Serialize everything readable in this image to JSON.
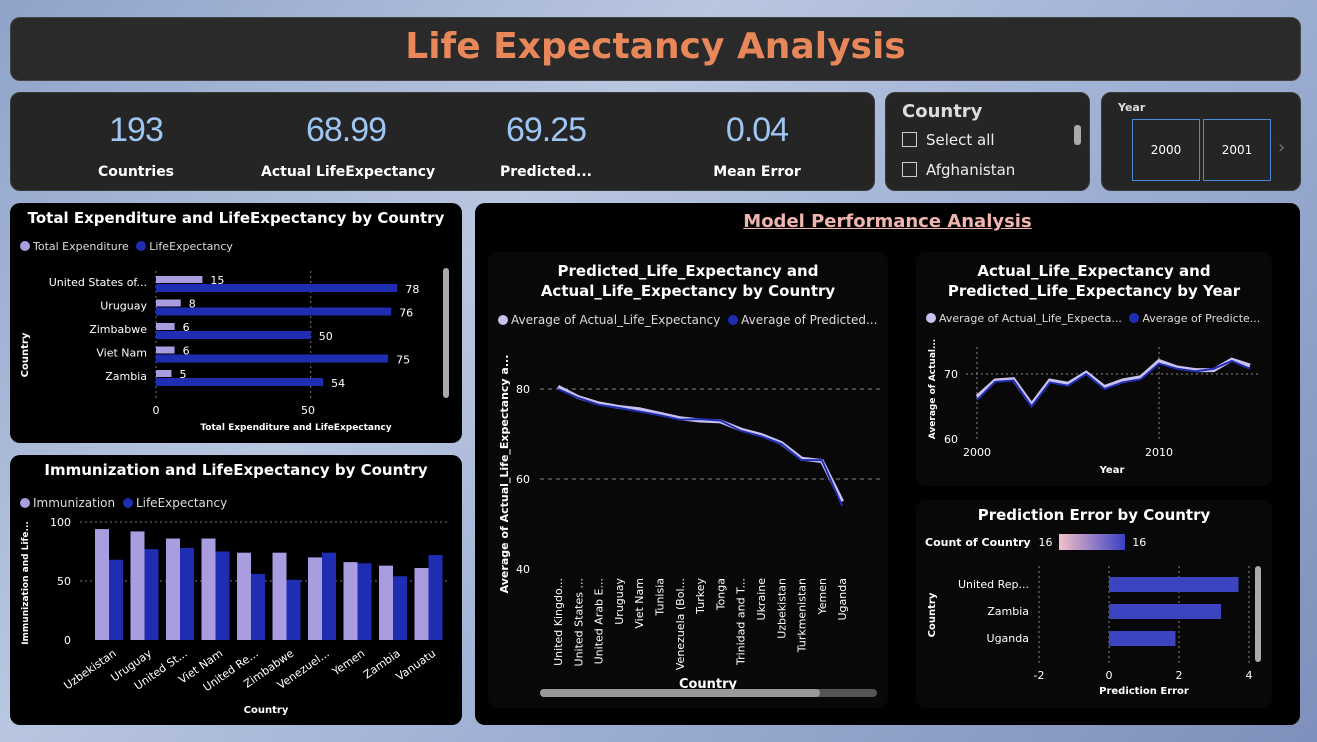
{
  "title": "Life Expectancy Analysis",
  "kpis": [
    {
      "value": "193",
      "label": "Countries"
    },
    {
      "value": "68.99",
      "label": "Actual LifeExpectancy"
    },
    {
      "value": "69.25",
      "label": "Predicted..."
    },
    {
      "value": "0.04",
      "label": "Mean Error"
    }
  ],
  "country_slicer": {
    "title": "Country",
    "items": [
      "Select all",
      "Afghanistan"
    ]
  },
  "year_slicer": {
    "title": "Year",
    "tiles": [
      "2000",
      "2001"
    ]
  },
  "colors": {
    "light": "#a99de0",
    "dark": "#1f2db3",
    "accent": "#e8875a",
    "kpi": "#9ec6f2"
  },
  "expenditure_chart": {
    "title": "Total Expenditure and LifeExpectancy by Country",
    "legend": [
      "Total Expenditure",
      "LifeExpectancy"
    ],
    "ylabel": "Country",
    "xlabel": "Total Expenditure and LifeExpectancy",
    "xticks": [
      "0",
      "50"
    ]
  },
  "immunization_chart": {
    "title": "Immunization and LifeExpectancy by Country",
    "legend": [
      "Immunization",
      "LifeExpectancy"
    ],
    "ylabel": "Immunization and Life...",
    "xlabel": "Country",
    "yticks": [
      "100",
      "50",
      "0"
    ]
  },
  "model_section": {
    "title": "Model Performance Analysis"
  },
  "pred_country_chart": {
    "title_line1": "Predicted_Life_Expectancy and",
    "title_line2": "Actual_Life_Expectancy by Country",
    "legend": [
      "Average of Actual_Life_Expectancy",
      "Average of Predicted..."
    ],
    "ylabel": "Average of Actual_Life_Expectancy a...",
    "xlabel": "Country",
    "yticks": [
      "80",
      "60",
      "40"
    ]
  },
  "year_chart": {
    "title_line1": "Actual_Life_Expectancy and",
    "title_line2": "Predicted_Life_Expectancy by Year",
    "legend": [
      "Average of Actual_Life_Expecta...",
      "Average of Predicte..."
    ],
    "ylabel": "Average of Actual...",
    "xlabel": "Year",
    "yticks": [
      "70",
      "60"
    ],
    "xticks": [
      "2000",
      "2010"
    ]
  },
  "error_chart": {
    "title": "Prediction Error by Country",
    "legend_title": "Count of Country",
    "legend_min": "16",
    "legend_max": "16",
    "ylabel": "Country",
    "xlabel": "Prediction Error",
    "xticks": [
      "-2",
      "0",
      "2",
      "4"
    ]
  },
  "chart_data": [
    {
      "type": "bar",
      "orientation": "horizontal",
      "title": "Total Expenditure and LifeExpectancy by Country",
      "categories": [
        "United States of...",
        "Uruguay",
        "Zimbabwe",
        "Viet Nam",
        "Zambia"
      ],
      "series": [
        {
          "name": "Total Expenditure",
          "values": [
            15,
            8,
            6,
            6,
            5
          ]
        },
        {
          "name": "LifeExpectancy",
          "values": [
            78,
            76,
            50,
            75,
            54
          ]
        }
      ],
      "xlim": [
        0,
        95
      ]
    },
    {
      "type": "bar",
      "title": "Immunization and LifeExpectancy by Country",
      "categories": [
        "Uzbekistan",
        "Uruguay",
        "United St...",
        "Viet Nam",
        "United Re...",
        "Zimbabwe",
        "Venezuel...",
        "Yemen",
        "Zambia",
        "Vanuatu"
      ],
      "series": [
        {
          "name": "Immunization",
          "values": [
            94,
            92,
            86,
            86,
            74,
            74,
            70,
            66,
            63,
            61
          ]
        },
        {
          "name": "LifeExpectancy",
          "values": [
            68,
            77,
            78,
            75,
            56,
            51,
            74,
            65,
            54,
            72
          ]
        }
      ],
      "ylim": [
        0,
        100
      ]
    },
    {
      "type": "line",
      "title": "Predicted_Life_Expectancy and Actual_Life_Expectancy by Country",
      "categories": [
        "United Kingdo...",
        "United States ...",
        "United Arab E...",
        "Uruguay",
        "Viet Nam",
        "Tunisia",
        "Venezuela (Bol...",
        "Turkey",
        "Tonga",
        "Trinidad and T...",
        "Ukraine",
        "Uzbekistan",
        "Turkmenistan",
        "Yemen",
        "Uganda"
      ],
      "series": [
        {
          "name": "Average of Actual_Life_Expectancy",
          "values": [
            80.5,
            78.2,
            76.8,
            76.0,
            75.5,
            74.5,
            73.5,
            73.0,
            72.8,
            71.0,
            69.8,
            68.0,
            64.5,
            64.0,
            55.0
          ]
        },
        {
          "name": "Average of Predicted...",
          "values": [
            80.0,
            78.0,
            76.5,
            75.8,
            75.0,
            74.2,
            73.2,
            73.3,
            73.0,
            70.7,
            69.5,
            67.8,
            64.2,
            64.2,
            54.0
          ]
        }
      ],
      "ylim": [
        40,
        85
      ]
    },
    {
      "type": "line",
      "title": "Actual_Life_Expectancy and Predicted_Life_Expectancy by Year",
      "x": [
        2000,
        2001,
        2002,
        2003,
        2004,
        2005,
        2006,
        2007,
        2008,
        2009,
        2010,
        2011,
        2012,
        2013,
        2014,
        2015
      ],
      "series": [
        {
          "name": "Average of Actual_Life_Expecta...",
          "values": [
            66.5,
            69.0,
            69.2,
            65.3,
            69.0,
            68.5,
            70.2,
            68.0,
            69.0,
            69.5,
            72.0,
            71.0,
            70.6,
            70.6,
            72.2,
            71.3
          ]
        },
        {
          "name": "Average of Predicte...",
          "values": [
            66.0,
            68.8,
            69.0,
            65.0,
            68.7,
            68.2,
            70.0,
            67.7,
            68.7,
            69.2,
            71.6,
            70.8,
            70.4,
            70.8,
            72.0,
            70.8
          ]
        }
      ],
      "ylim": [
        60,
        75
      ],
      "xlim": [
        1999,
        2016
      ]
    },
    {
      "type": "bar",
      "orientation": "horizontal",
      "title": "Prediction Error by Country",
      "categories": [
        "United Rep...",
        "Zambia",
        "Uganda"
      ],
      "values": [
        3.7,
        3.2,
        1.9
      ],
      "xlim": [
        -3,
        4.5
      ]
    }
  ]
}
